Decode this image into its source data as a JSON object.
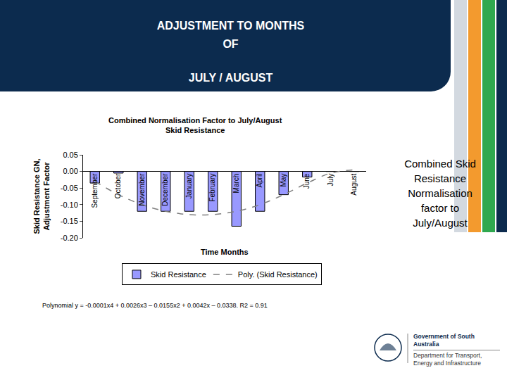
{
  "slide": {
    "header": [
      "ADJUSTMENT TO MONTHS",
      "OF",
      "JULY / AUGUST"
    ],
    "side_note": [
      "Combined Skid",
      "Resistance",
      "Normalisation",
      "factor to",
      "July/August"
    ],
    "equation": "Polynomial y = -0.0001x4 + 0.0026x3 – 0.0155x2 + 0.0042x – 0.0338. R2 = 0.91",
    "logo": [
      "Government of South Australia",
      "Department for Transport,",
      "Energy and Infrastructure"
    ]
  },
  "chart_data": {
    "type": "bar",
    "title": "Combined Normalisation Factor to July/August\nSkid Resistance",
    "x_label": "Time Months",
    "y_label": "Skid Resistance GN,\nAdjustment Factor",
    "categories": [
      "September",
      "October",
      "November",
      "December",
      "January",
      "February",
      "March",
      "April",
      "May",
      "June",
      "July",
      "August"
    ],
    "series": [
      {
        "name": "Skid Resistance",
        "type": "bar",
        "color": "#9999ff",
        "values": [
          -0.035,
          -0.005,
          -0.12,
          -0.12,
          -0.12,
          -0.12,
          -0.165,
          -0.12,
          -0.07,
          -0.017,
          0,
          0
        ]
      },
      {
        "name": "Poly. (Skid Resistance)",
        "type": "line",
        "line_style": "dashed",
        "color": "#7f7f7f",
        "values": [
          -0.03,
          -0.07,
          -0.1,
          -0.12,
          -0.13,
          -0.13,
          -0.12,
          -0.1,
          -0.07,
          -0.035,
          -0.005,
          0.005
        ]
      }
    ],
    "ylim": [
      -0.2,
      0.05
    ],
    "yticks": [
      {
        "value": 0.05,
        "label": "0.05"
      },
      {
        "value": 0,
        "label": "0.00"
      },
      {
        "value": -0.05,
        "label": "-0.05"
      },
      {
        "value": -0.1,
        "label": "-0.10"
      },
      {
        "value": -0.15,
        "label": "-0.15"
      },
      {
        "value": -0.2,
        "label": "-0.20"
      }
    ],
    "grid": false,
    "legend": "bottom",
    "data_labels": false
  }
}
